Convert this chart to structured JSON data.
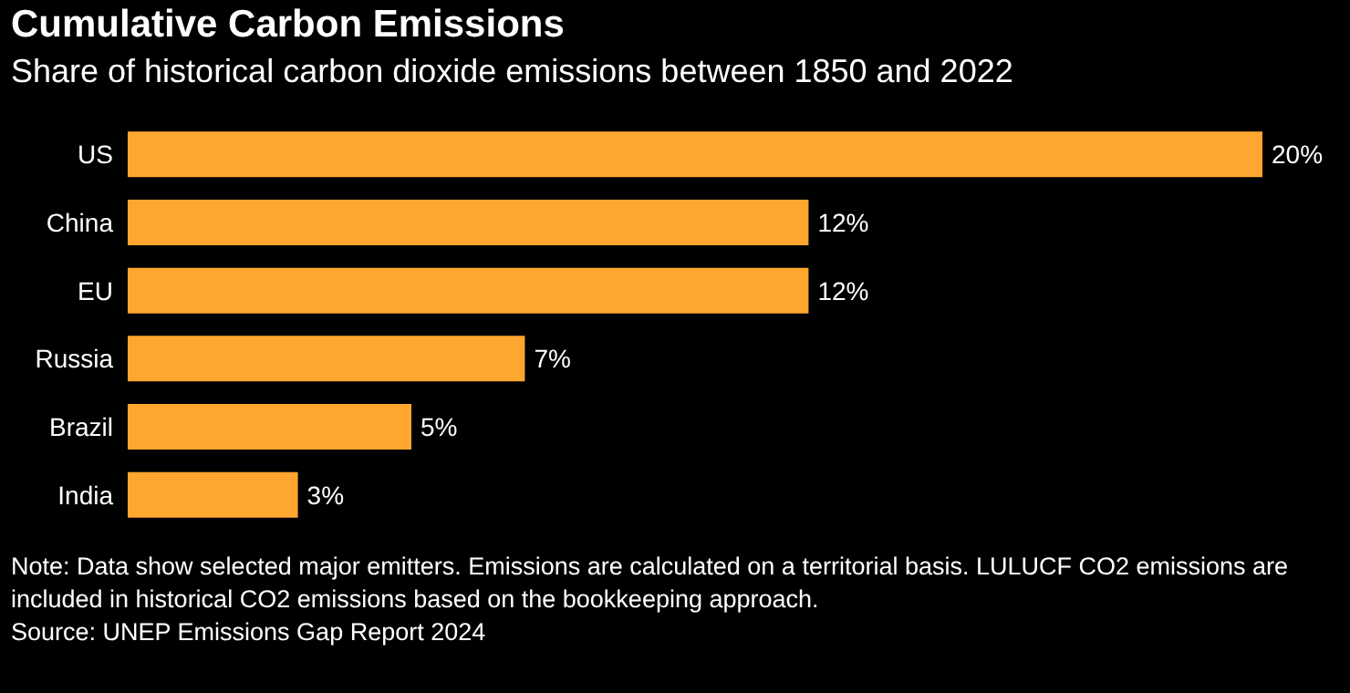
{
  "chart_data": {
    "type": "bar",
    "orientation": "horizontal",
    "title": "Cumulative Carbon Emissions",
    "subtitle": "Share of historical carbon dioxide emissions between 1850 and 2022",
    "categories": [
      "US",
      "China",
      "EU",
      "Russia",
      "Brazil",
      "India"
    ],
    "values": [
      20,
      12,
      12,
      7,
      5,
      3
    ],
    "value_labels": [
      "20%",
      "12%",
      "12%",
      "7%",
      "5%",
      "3%"
    ],
    "color": "#ffa630",
    "annotations": [
      "Note: Data show selected major emitters. Emissions are calculated on a territorial basis. LULUCF CO2 emissions are included in historical CO2 emissions based on the bookkeeping approach.",
      "Source: UNEP Emissions Gap Report 2024"
    ]
  }
}
